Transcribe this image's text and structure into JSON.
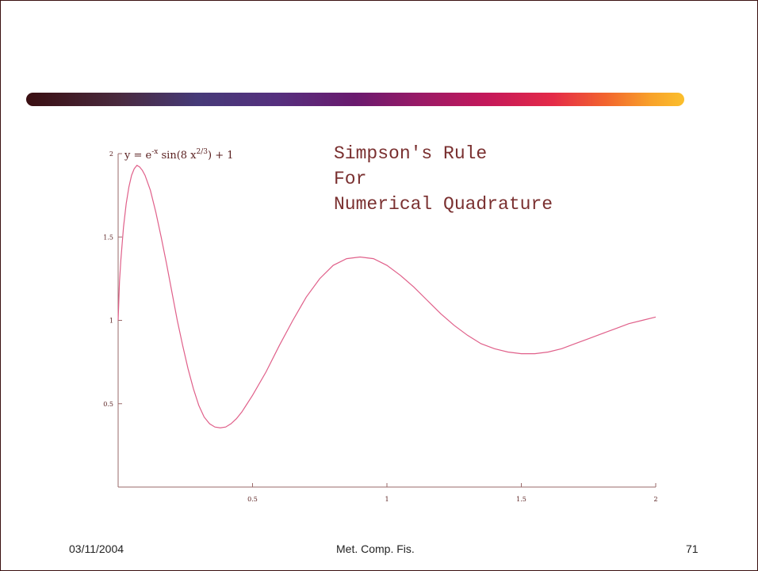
{
  "footer": {
    "date": "03/11/2004",
    "center": "Met. Comp. Fis.",
    "page": "71"
  },
  "colors": {
    "curve": "#e0608a",
    "axis": "#9a6a6a",
    "text": "#5a2020"
  },
  "chart_data": {
    "type": "line",
    "title_lines": [
      "Simpson's Rule",
      "For",
      "Numerical Quadrature"
    ],
    "formula": {
      "lhs": "y",
      "eq": " = ",
      "base": "e",
      "exp1": "-x",
      "fn": " sin(8 x",
      "exp2": "2/3",
      "tail": ") + 1"
    },
    "xlim": [
      0,
      2
    ],
    "ylim": [
      0,
      2
    ],
    "x_ticks": [
      "0.5",
      "1",
      "1.5",
      "2"
    ],
    "y_ticks": [
      "0.5",
      "1",
      "1.5",
      "2"
    ],
    "x_tick_values": [
      0.5,
      1,
      1.5,
      2
    ],
    "y_tick_values": [
      0.5,
      1,
      1.5,
      2
    ],
    "grid": false,
    "series": [
      {
        "x": [
          0.0,
          0.005,
          0.01,
          0.02,
          0.03,
          0.04,
          0.05,
          0.06,
          0.07,
          0.08,
          0.09,
          0.1,
          0.12,
          0.14,
          0.16,
          0.18,
          0.2,
          0.22,
          0.24,
          0.26,
          0.28,
          0.3,
          0.32,
          0.34,
          0.36,
          0.38,
          0.4,
          0.42,
          0.44,
          0.46,
          0.48,
          0.5,
          0.55,
          0.6,
          0.65,
          0.7,
          0.75,
          0.8,
          0.85,
          0.9,
          0.95,
          1.0,
          1.05,
          1.1,
          1.15,
          1.2,
          1.25,
          1.3,
          1.35,
          1.4,
          1.45,
          1.5,
          1.55,
          1.6,
          1.65,
          1.7,
          1.75,
          1.8,
          1.85,
          1.9,
          1.95,
          2.0
        ],
        "y": [
          1.0,
          1.23,
          1.36,
          1.56,
          1.7,
          1.8,
          1.87,
          1.91,
          1.93,
          1.92,
          1.9,
          1.87,
          1.78,
          1.65,
          1.5,
          1.34,
          1.17,
          1.0,
          0.85,
          0.71,
          0.59,
          0.49,
          0.42,
          0.38,
          0.36,
          0.355,
          0.36,
          0.38,
          0.41,
          0.45,
          0.5,
          0.55,
          0.69,
          0.85,
          1.0,
          1.14,
          1.25,
          1.33,
          1.37,
          1.38,
          1.37,
          1.33,
          1.27,
          1.2,
          1.12,
          1.04,
          0.97,
          0.91,
          0.86,
          0.83,
          0.81,
          0.8,
          0.8,
          0.81,
          0.83,
          0.86,
          0.89,
          0.92,
          0.95,
          0.98,
          1.0,
          1.02
        ]
      }
    ]
  }
}
